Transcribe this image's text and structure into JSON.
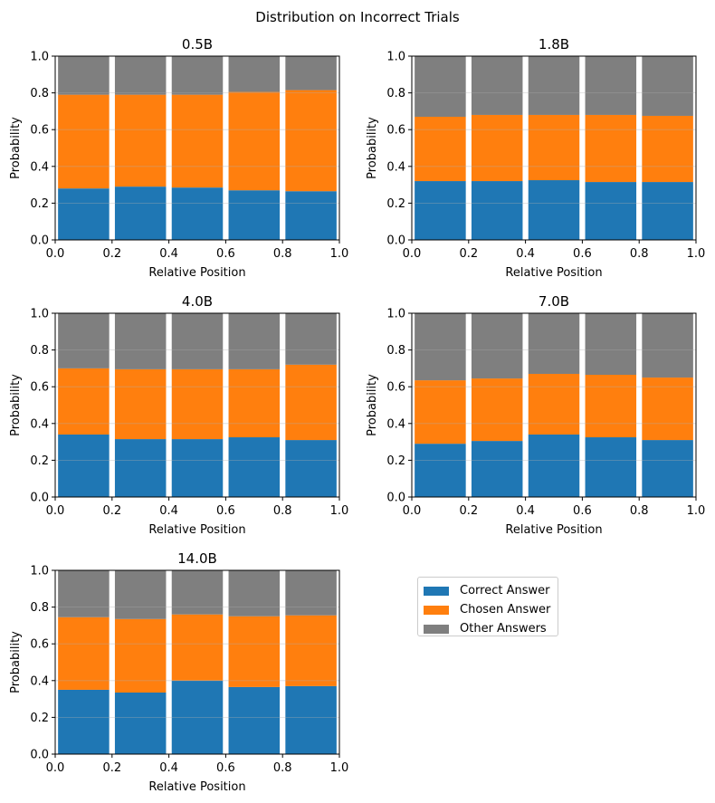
{
  "figure_title": "Distribution on Incorrect Trials",
  "colors": {
    "correct": "#1f77b4",
    "chosen": "#ff7f0e",
    "other": "#7f7f7f"
  },
  "legend": {
    "placement": "empty panel, upper-left",
    "items": [
      {
        "label": "Correct Answer",
        "color": "#1f77b4"
      },
      {
        "label": "Chosen Answer",
        "color": "#ff7f0e"
      },
      {
        "label": "Other Answers",
        "color": "#7f7f7f"
      }
    ]
  },
  "chart_data": [
    {
      "type": "bar",
      "stacked": true,
      "title": "0.5B",
      "xlabel": "Relative Position",
      "ylabel": "Probability",
      "xlim": [
        0,
        1
      ],
      "ylim": [
        0,
        1
      ],
      "xticks": [
        "0.0",
        "0.2",
        "0.4",
        "0.6",
        "0.8",
        "1.0"
      ],
      "yticks": [
        "0.0",
        "0.2",
        "0.4",
        "0.6",
        "0.8",
        "1.0"
      ],
      "grid": "y-axis",
      "x": [
        0.1,
        0.3,
        0.5,
        0.7,
        0.9
      ],
      "bar_width": 0.18,
      "series": [
        {
          "name": "Correct Answer",
          "values": [
            0.28,
            0.29,
            0.285,
            0.27,
            0.265
          ]
        },
        {
          "name": "Chosen Answer",
          "values": [
            0.51,
            0.5,
            0.505,
            0.535,
            0.55
          ]
        },
        {
          "name": "Other Answers",
          "values": [
            0.21,
            0.21,
            0.21,
            0.195,
            0.185
          ]
        }
      ]
    },
    {
      "type": "bar",
      "stacked": true,
      "title": "1.8B",
      "xlabel": "Relative Position",
      "ylabel": "Probability",
      "xlim": [
        0,
        1
      ],
      "ylim": [
        0,
        1
      ],
      "xticks": [
        "0.0",
        "0.2",
        "0.4",
        "0.6",
        "0.8",
        "1.0"
      ],
      "yticks": [
        "0.0",
        "0.2",
        "0.4",
        "0.6",
        "0.8",
        "1.0"
      ],
      "grid": "y-axis",
      "x": [
        0.1,
        0.3,
        0.5,
        0.7,
        0.9
      ],
      "bar_width": 0.18,
      "series": [
        {
          "name": "Correct Answer",
          "values": [
            0.32,
            0.32,
            0.325,
            0.315,
            0.315
          ]
        },
        {
          "name": "Chosen Answer",
          "values": [
            0.35,
            0.36,
            0.355,
            0.365,
            0.36
          ]
        },
        {
          "name": "Other Answers",
          "values": [
            0.33,
            0.32,
            0.32,
            0.32,
            0.325
          ]
        }
      ]
    },
    {
      "type": "bar",
      "stacked": true,
      "title": "4.0B",
      "xlabel": "Relative Position",
      "ylabel": "Probability",
      "xlim": [
        0,
        1
      ],
      "ylim": [
        0,
        1
      ],
      "xticks": [
        "0.0",
        "0.2",
        "0.4",
        "0.6",
        "0.8",
        "1.0"
      ],
      "yticks": [
        "0.0",
        "0.2",
        "0.4",
        "0.6",
        "0.8",
        "1.0"
      ],
      "grid": "y-axis",
      "x": [
        0.1,
        0.3,
        0.5,
        0.7,
        0.9
      ],
      "bar_width": 0.18,
      "series": [
        {
          "name": "Correct Answer",
          "values": [
            0.34,
            0.315,
            0.315,
            0.325,
            0.31
          ]
        },
        {
          "name": "Chosen Answer",
          "values": [
            0.36,
            0.38,
            0.38,
            0.37,
            0.41
          ]
        },
        {
          "name": "Other Answers",
          "values": [
            0.3,
            0.305,
            0.305,
            0.305,
            0.28
          ]
        }
      ]
    },
    {
      "type": "bar",
      "stacked": true,
      "title": "7.0B",
      "xlabel": "Relative Position",
      "ylabel": "Probability",
      "xlim": [
        0,
        1
      ],
      "ylim": [
        0,
        1
      ],
      "xticks": [
        "0.0",
        "0.2",
        "0.4",
        "0.6",
        "0.8",
        "1.0"
      ],
      "yticks": [
        "0.0",
        "0.2",
        "0.4",
        "0.6",
        "0.8",
        "1.0"
      ],
      "grid": "y-axis",
      "x": [
        0.1,
        0.3,
        0.5,
        0.7,
        0.9
      ],
      "bar_width": 0.18,
      "series": [
        {
          "name": "Correct Answer",
          "values": [
            0.29,
            0.305,
            0.34,
            0.325,
            0.31
          ]
        },
        {
          "name": "Chosen Answer",
          "values": [
            0.345,
            0.34,
            0.33,
            0.34,
            0.34
          ]
        },
        {
          "name": "Other Answers",
          "values": [
            0.365,
            0.355,
            0.33,
            0.335,
            0.35
          ]
        }
      ]
    },
    {
      "type": "bar",
      "stacked": true,
      "title": "14.0B",
      "xlabel": "Relative Position",
      "ylabel": "Probability",
      "xlim": [
        0,
        1
      ],
      "ylim": [
        0,
        1
      ],
      "xticks": [
        "0.0",
        "0.2",
        "0.4",
        "0.6",
        "0.8",
        "1.0"
      ],
      "yticks": [
        "0.0",
        "0.2",
        "0.4",
        "0.6",
        "0.8",
        "1.0"
      ],
      "grid": "y-axis",
      "x": [
        0.1,
        0.3,
        0.5,
        0.7,
        0.9
      ],
      "bar_width": 0.18,
      "series": [
        {
          "name": "Correct Answer",
          "values": [
            0.35,
            0.335,
            0.4,
            0.365,
            0.37
          ]
        },
        {
          "name": "Chosen Answer",
          "values": [
            0.395,
            0.4,
            0.36,
            0.385,
            0.385
          ]
        },
        {
          "name": "Other Answers",
          "values": [
            0.255,
            0.265,
            0.24,
            0.25,
            0.245
          ]
        }
      ]
    }
  ]
}
